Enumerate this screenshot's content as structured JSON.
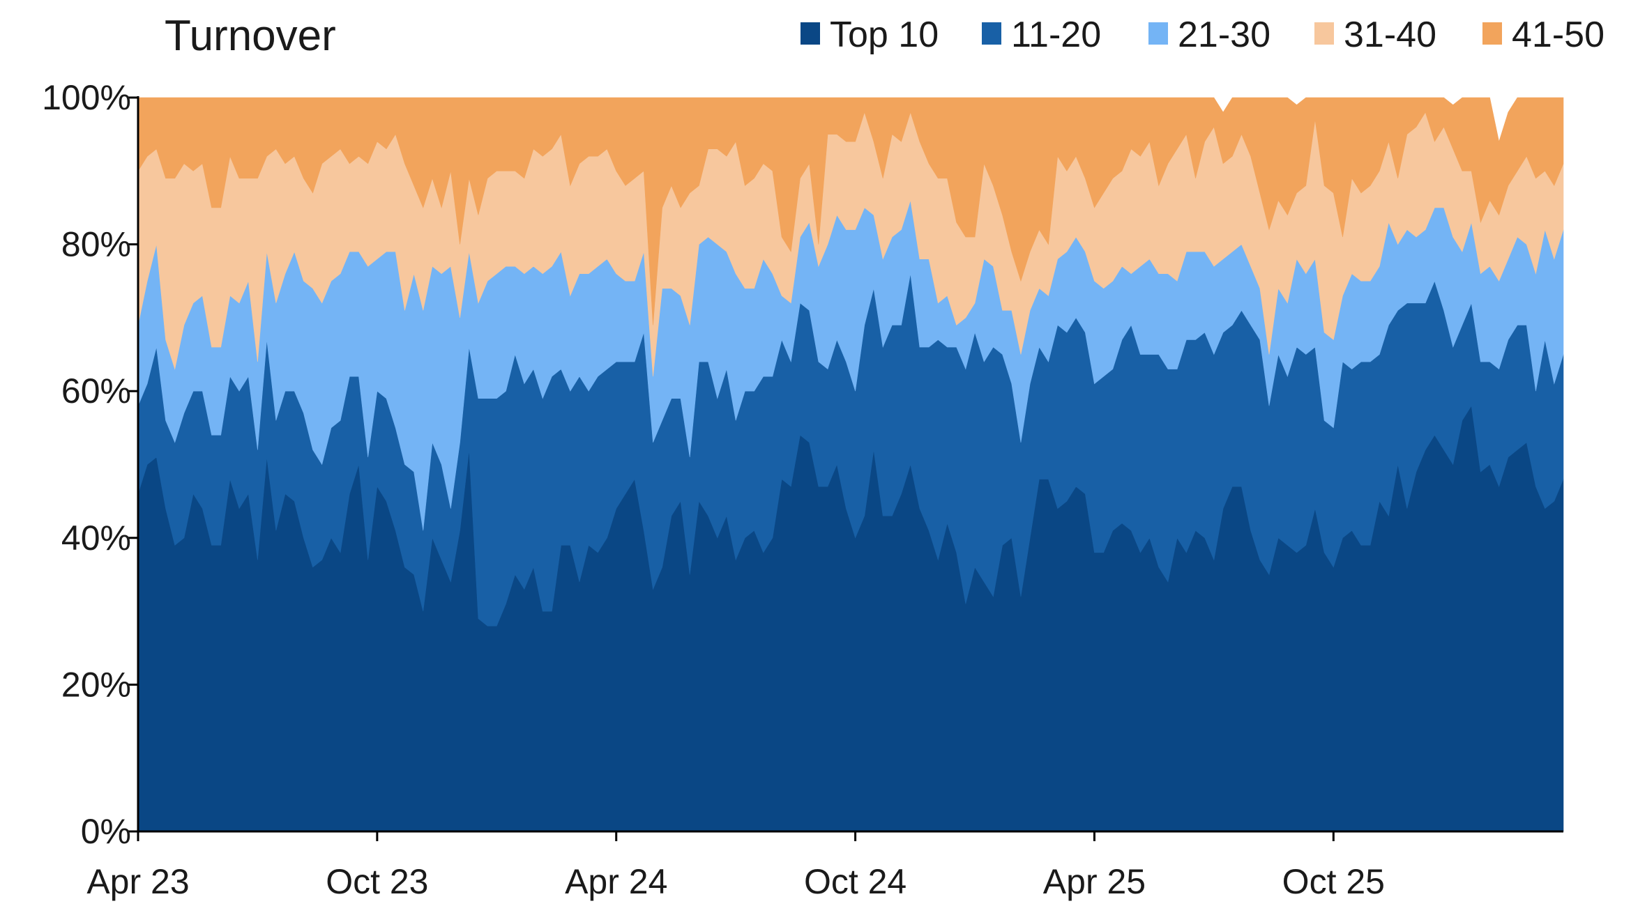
{
  "chart_data": {
    "type": "area",
    "stacked": true,
    "title": "Turnover",
    "xlabel": "",
    "ylabel": "",
    "ylim": [
      0,
      100
    ],
    "y_ticks": [
      "0%",
      "20%",
      "40%",
      "60%",
      "80%",
      "100%"
    ],
    "x_ticks": [
      "Apr 23",
      "Oct 23",
      "Apr 24",
      "Oct 24",
      "Apr 25",
      "Oct 25"
    ],
    "x_tick_weeks": [
      0,
      26,
      52,
      78,
      104,
      130
    ],
    "legend_position": "top-right",
    "grid": false,
    "series": [
      {
        "name": "Top 10",
        "color": "#0a4785",
        "values": [
          46,
          50,
          51,
          44,
          39,
          40,
          46,
          44,
          39,
          39,
          48,
          44,
          46,
          37,
          51,
          41,
          46,
          45,
          40,
          36,
          37,
          40,
          38,
          46,
          50,
          37,
          47,
          45,
          41,
          36,
          35,
          30,
          40,
          37,
          34,
          41,
          52,
          29,
          28,
          28,
          31,
          35,
          33,
          36,
          30,
          30,
          39,
          39,
          34,
          39,
          38,
          40,
          44,
          46,
          48,
          41,
          33,
          36,
          43,
          45,
          35,
          45,
          43,
          40,
          43,
          37,
          40,
          41,
          38,
          40,
          48,
          47,
          54,
          53,
          47,
          47,
          50,
          44,
          40,
          43,
          52,
          43,
          43,
          46,
          50,
          44,
          41,
          37,
          42,
          38,
          31,
          36,
          34,
          32,
          39,
          40,
          32,
          40,
          48,
          48,
          44,
          45,
          47,
          46,
          38,
          38,
          41,
          42,
          41,
          38,
          40,
          36,
          34,
          40,
          38,
          41,
          40,
          37,
          44,
          47,
          47,
          41,
          37,
          35,
          40,
          39,
          38,
          39,
          44,
          38,
          36,
          40,
          41,
          39,
          39,
          45,
          43,
          50,
          44,
          49,
          52,
          54,
          52,
          50,
          56,
          58,
          49,
          50,
          47,
          51,
          52,
          53,
          47,
          44,
          45,
          48
        ]
      },
      {
        "name": "11-20",
        "color": "#1860a6",
        "values": [
          12,
          11,
          15,
          12,
          14,
          17,
          14,
          16,
          15,
          15,
          14,
          16,
          16,
          15,
          16,
          15,
          14,
          15,
          17,
          16,
          13,
          15,
          18,
          16,
          12,
          14,
          13,
          14,
          14,
          14,
          14,
          11,
          13,
          13,
          10,
          12,
          14,
          30,
          31,
          31,
          29,
          30,
          28,
          27,
          29,
          32,
          24,
          21,
          28,
          21,
          24,
          23,
          20,
          18,
          16,
          27,
          20,
          20,
          16,
          14,
          16,
          19,
          21,
          19,
          20,
          19,
          20,
          19,
          24,
          22,
          19,
          17,
          18,
          18,
          17,
          16,
          17,
          20,
          20,
          26,
          22,
          23,
          26,
          23,
          26,
          22,
          25,
          30,
          24,
          28,
          32,
          32,
          30,
          34,
          26,
          21,
          21,
          21,
          18,
          16,
          25,
          23,
          23,
          22,
          23,
          24,
          22,
          25,
          28,
          27,
          25,
          29,
          29,
          23,
          29,
          26,
          28,
          28,
          24,
          22,
          24,
          28,
          30,
          23,
          25,
          23,
          28,
          26,
          22,
          18,
          19,
          24,
          22,
          25,
          25,
          20,
          26,
          21,
          28,
          23,
          20,
          21,
          19,
          16,
          13,
          14,
          15,
          14,
          16,
          16,
          17,
          16,
          13,
          23,
          16,
          17
        ]
      },
      {
        "name": "21-30",
        "color": "#74b4f5",
        "values": [
          11,
          14,
          14,
          11,
          10,
          12,
          12,
          13,
          12,
          12,
          11,
          12,
          13,
          12,
          12,
          16,
          16,
          19,
          18,
          22,
          22,
          20,
          20,
          17,
          17,
          26,
          18,
          20,
          24,
          21,
          27,
          30,
          24,
          26,
          33,
          17,
          13,
          13,
          16,
          17,
          17,
          12,
          15,
          14,
          17,
          15,
          16,
          13,
          14,
          16,
          15,
          15,
          12,
          11,
          11,
          11,
          9,
          18,
          15,
          14,
          18,
          16,
          17,
          21,
          16,
          20,
          14,
          14,
          16,
          14,
          6,
          8,
          9,
          12,
          13,
          17,
          17,
          18,
          22,
          16,
          10,
          12,
          12,
          13,
          10,
          12,
          12,
          5,
          7,
          3,
          7,
          4,
          14,
          11,
          6,
          10,
          12,
          10,
          8,
          9,
          9,
          11,
          11,
          11,
          14,
          12,
          12,
          10,
          7,
          12,
          13,
          11,
          13,
          12,
          12,
          12,
          11,
          12,
          10,
          10,
          9,
          8,
          7,
          7,
          9,
          10,
          12,
          11,
          12,
          12,
          12,
          9,
          13,
          11,
          11,
          12,
          14,
          9,
          10,
          9,
          10,
          10,
          14,
          15,
          10,
          11,
          12,
          13,
          12,
          11,
          12,
          11,
          16,
          15,
          17,
          17
        ]
      },
      {
        "name": "31-40",
        "color": "#f7c79d",
        "values": [
          21,
          17,
          13,
          22,
          26,
          22,
          18,
          18,
          19,
          19,
          19,
          17,
          14,
          25,
          13,
          21,
          15,
          13,
          14,
          13,
          19,
          17,
          17,
          12,
          13,
          14,
          16,
          14,
          16,
          20,
          12,
          14,
          12,
          9,
          13,
          10,
          10,
          12,
          14,
          14,
          13,
          13,
          13,
          16,
          16,
          16,
          16,
          15,
          15,
          16,
          15,
          15,
          14,
          13,
          14,
          11,
          7,
          11,
          14,
          12,
          18,
          8,
          12,
          13,
          13,
          18,
          14,
          15,
          13,
          14,
          8,
          7,
          8,
          8,
          3,
          15,
          11,
          12,
          12,
          13,
          10,
          11,
          14,
          12,
          12,
          16,
          13,
          17,
          16,
          14,
          11,
          9,
          13,
          11,
          13,
          8,
          10,
          8,
          8,
          7,
          14,
          11,
          11,
          10,
          10,
          13,
          14,
          13,
          17,
          15,
          16,
          12,
          15,
          18,
          16,
          10,
          15,
          19,
          13,
          13,
          15,
          15,
          13,
          17,
          12,
          12,
          9,
          12,
          19,
          20,
          20,
          8,
          13,
          12,
          13,
          13,
          11,
          9,
          13,
          15,
          16,
          9,
          11,
          12,
          11,
          7,
          7,
          9,
          9,
          10,
          9,
          12,
          13,
          8,
          10,
          9
        ]
      },
      {
        "name": "41-50",
        "color": "#f2a45c",
        "values": [
          10,
          8,
          7,
          11,
          11,
          9,
          10,
          9,
          15,
          15,
          8,
          11,
          11,
          11,
          8,
          7,
          9,
          8,
          11,
          13,
          9,
          8,
          7,
          11,
          8,
          9,
          6,
          7,
          5,
          9,
          12,
          15,
          11,
          15,
          10,
          20,
          11,
          16,
          11,
          10,
          10,
          10,
          11,
          7,
          8,
          7,
          5,
          12,
          9,
          8,
          8,
          7,
          10,
          12,
          11,
          10,
          31,
          15,
          12,
          15,
          13,
          12,
          7,
          7,
          8,
          6,
          12,
          11,
          9,
          10,
          19,
          21,
          11,
          9,
          20,
          5,
          5,
          6,
          6,
          2,
          6,
          11,
          5,
          6,
          2,
          6,
          9,
          11,
          11,
          17,
          19,
          19,
          9,
          12,
          16,
          21,
          25,
          21,
          18,
          20,
          8,
          10,
          8,
          11,
          15,
          13,
          11,
          10,
          7,
          8,
          6,
          12,
          13,
          7,
          5,
          11,
          6,
          4,
          7,
          8,
          5,
          8,
          13,
          18,
          14,
          16,
          12,
          12,
          13,
          12,
          13,
          19,
          11,
          13,
          12,
          10,
          6,
          11,
          6,
          4,
          5,
          6,
          6,
          6,
          10,
          10,
          17,
          14,
          10,
          10,
          11,
          8,
          11,
          10,
          12,
          9
        ]
      }
    ]
  }
}
